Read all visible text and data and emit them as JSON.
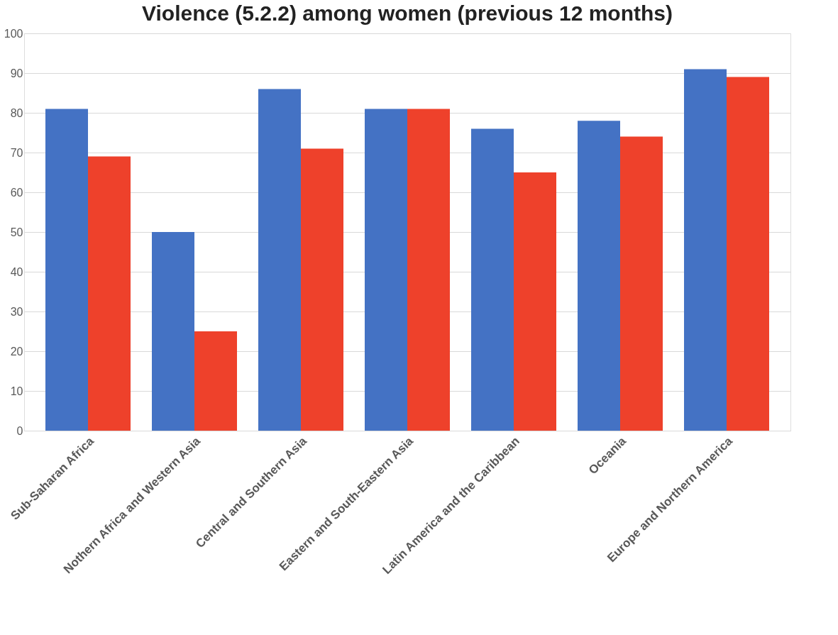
{
  "chart_data": {
    "type": "bar",
    "title": "Violence (5.2.2) among women (previous 12 months)",
    "categories": [
      "Sub-Saharan Africa",
      "Nothern Africa and Western Asia",
      "Central and Southern Asia",
      "Eastern and South-Eastern Asia",
      "Latin America and the Caribbean",
      "Oceania",
      "Europe and Northern America"
    ],
    "series": [
      {
        "color": "#4472c4",
        "values": [
          81,
          50,
          86,
          81,
          76,
          78,
          91
        ]
      },
      {
        "color": "#ee412b",
        "values": [
          69,
          25,
          71,
          81,
          65,
          74,
          89
        ]
      }
    ],
    "ylim": [
      0,
      100
    ],
    "yticks": [
      0,
      10,
      20,
      30,
      40,
      50,
      60,
      70,
      80,
      90,
      100
    ],
    "grid": "y",
    "legend": false
  }
}
